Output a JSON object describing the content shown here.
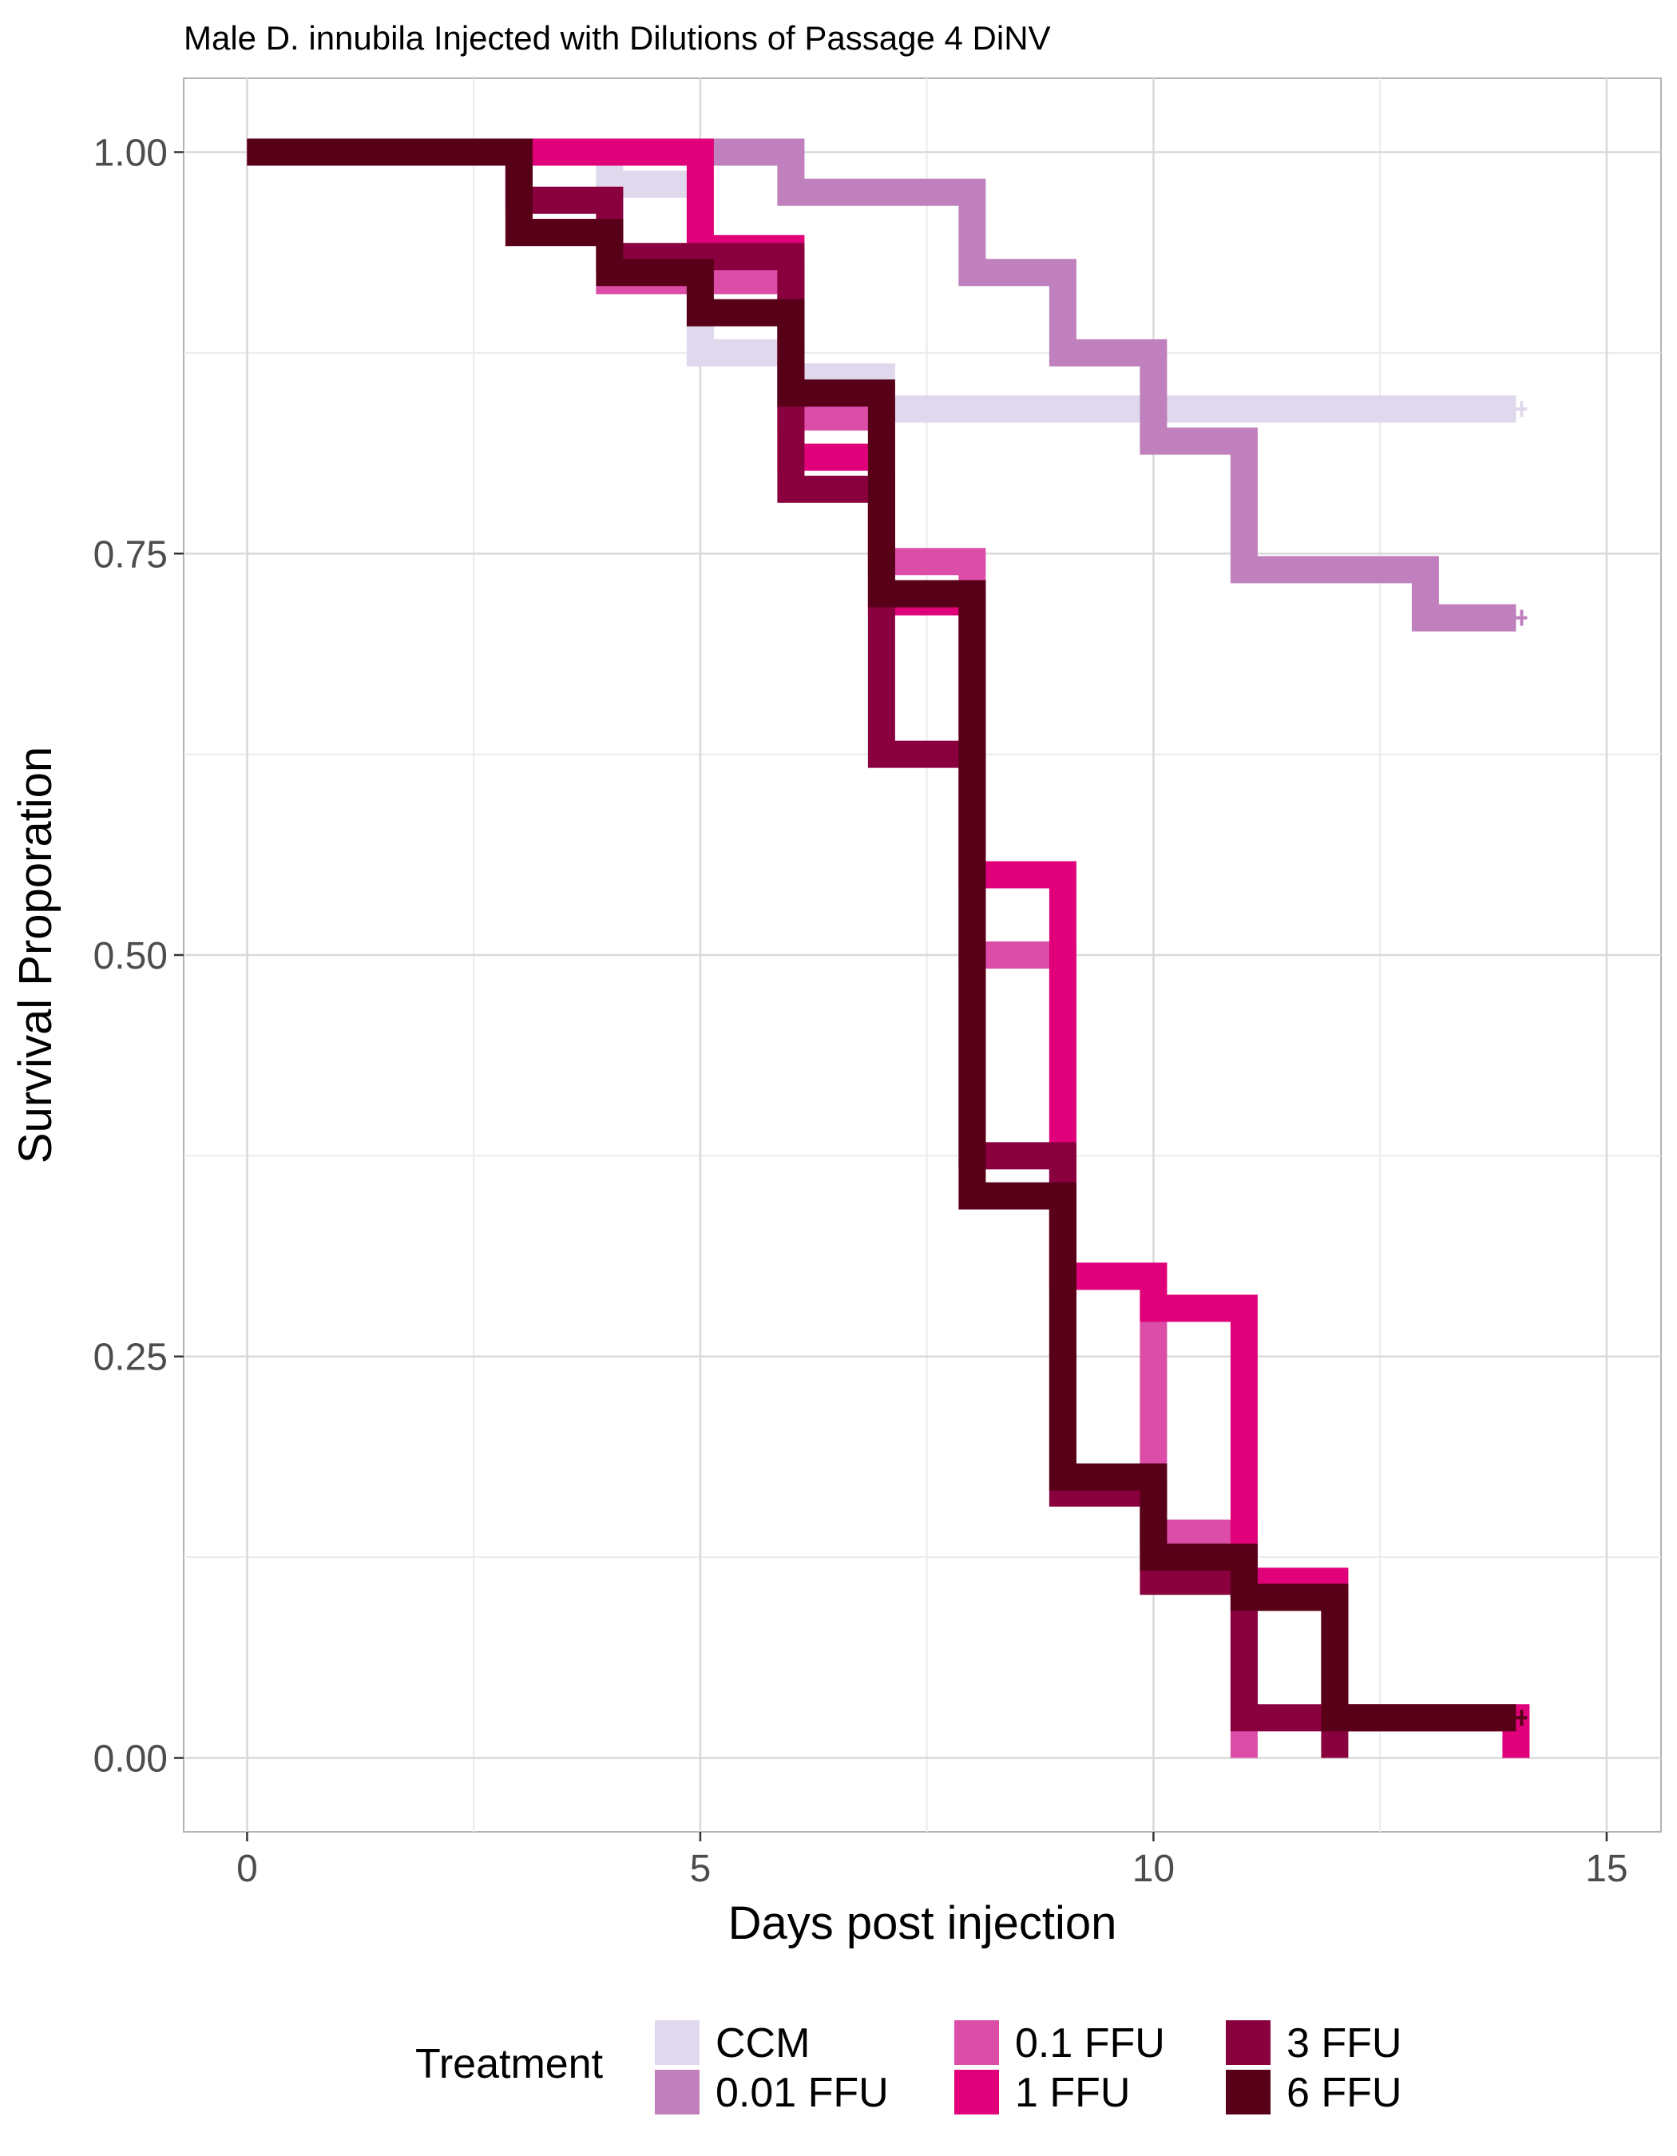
{
  "chart_data": {
    "type": "line",
    "step": true,
    "title": "Male D. innubila Injected with Dilutions of Passage 4 DiNV",
    "xlabel": "Days post injection",
    "ylabel": "Survival Proporation",
    "xlim": [
      -0.7,
      15.6
    ],
    "ylim": [
      -0.046,
      1.046
    ],
    "xticks": [
      0,
      5,
      10,
      15
    ],
    "xtick_labels": [
      "0",
      "5",
      "10",
      "15"
    ],
    "yticks": [
      0,
      0.25,
      0.5,
      0.75,
      1.0
    ],
    "ytick_labels": [
      "0.00",
      "0.25",
      "0.50",
      "0.75",
      "1.00"
    ],
    "grid": true,
    "legend": {
      "title": "Treatment",
      "position": "bottom"
    },
    "series": [
      {
        "name": "CCM",
        "color": "#e0d8ec",
        "censor_end": true,
        "points": [
          [
            0,
            1.0
          ],
          [
            4,
            0.98
          ],
          [
            5,
            0.875
          ],
          [
            6,
            0.86
          ],
          [
            7,
            0.84
          ],
          [
            14,
            0.84
          ]
        ]
      },
      {
        "name": "0.01 FFU",
        "color": "#bf80bd",
        "censor_end": true,
        "points": [
          [
            0,
            1.0
          ],
          [
            6,
            0.975
          ],
          [
            8,
            0.925
          ],
          [
            9,
            0.875
          ],
          [
            10,
            0.82
          ],
          [
            11,
            0.74
          ],
          [
            13,
            0.71
          ],
          [
            14,
            0.71
          ]
        ]
      },
      {
        "name": "0.1 FFU",
        "color": "#dc4da8",
        "censor_end": false,
        "points": [
          [
            0,
            1.0
          ],
          [
            3,
            0.95
          ],
          [
            4,
            0.92
          ],
          [
            5,
            0.92
          ],
          [
            6,
            0.835
          ],
          [
            7,
            0.745
          ],
          [
            8,
            0.5
          ],
          [
            9,
            0.3
          ],
          [
            10,
            0.14
          ],
          [
            11,
            0.0
          ]
        ]
      },
      {
        "name": "1 FFU",
        "color": "#e0007a",
        "censor_end": false,
        "points": [
          [
            0,
            1.0
          ],
          [
            5,
            0.94
          ],
          [
            6,
            0.81
          ],
          [
            7,
            0.72
          ],
          [
            8,
            0.55
          ],
          [
            9,
            0.3
          ],
          [
            10,
            0.28
          ],
          [
            11,
            0.11
          ],
          [
            12,
            0.025
          ],
          [
            14,
            0.0
          ]
        ]
      },
      {
        "name": "3 FFU",
        "color": "#8a003f",
        "censor_end": false,
        "points": [
          [
            0,
            1.0
          ],
          [
            3,
            0.97
          ],
          [
            4,
            0.935
          ],
          [
            6,
            0.79
          ],
          [
            7,
            0.625
          ],
          [
            8,
            0.375
          ],
          [
            9,
            0.165
          ],
          [
            10,
            0.11
          ],
          [
            11,
            0.025
          ],
          [
            12,
            0.0
          ]
        ]
      },
      {
        "name": "6 FFU",
        "color": "#570018",
        "censor_end": true,
        "points": [
          [
            0,
            1.0
          ],
          [
            3,
            0.95
          ],
          [
            4,
            0.925
          ],
          [
            5,
            0.9
          ],
          [
            6,
            0.85
          ],
          [
            7,
            0.725
          ],
          [
            8,
            0.35
          ],
          [
            9,
            0.175
          ],
          [
            10,
            0.125
          ],
          [
            11,
            0.1
          ],
          [
            12,
            0.025
          ],
          [
            14,
            0.025
          ]
        ]
      }
    ]
  }
}
